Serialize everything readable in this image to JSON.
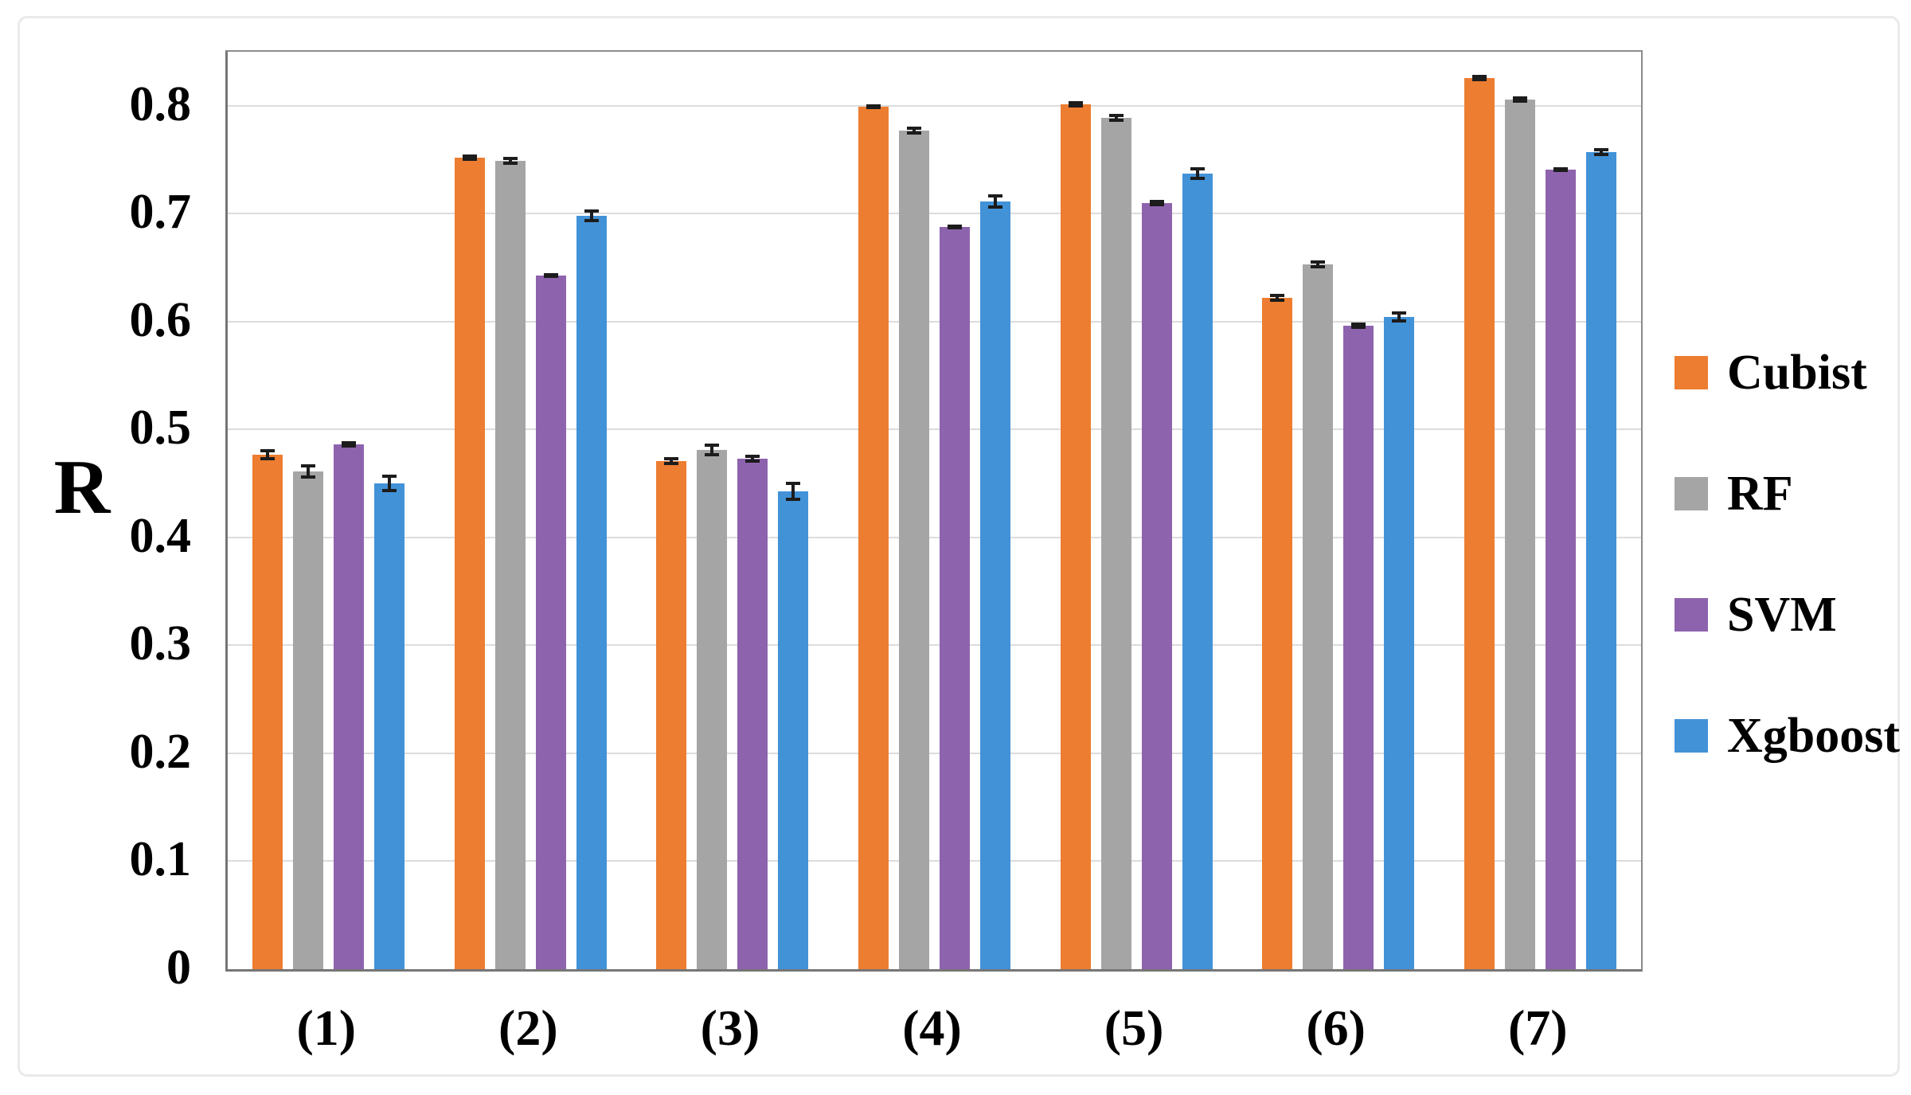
{
  "chart_data": {
    "type": "bar",
    "title": "",
    "ylabel": "R",
    "xlabel": "",
    "categories": [
      "(1)",
      "(2)",
      "(3)",
      "(4)",
      "(5)",
      "(6)",
      "(7)"
    ],
    "y_ticks": [
      "0",
      "0.1",
      "0.2",
      "0.3",
      "0.4",
      "0.5",
      "0.6",
      "0.7",
      "0.8"
    ],
    "ylim": [
      0,
      0.85
    ],
    "grid": true,
    "error_bars": true,
    "legend_position": "right",
    "series": [
      {
        "name": "Cubist",
        "color": "#ED7D31",
        "values": [
          0.477,
          0.752,
          0.471,
          0.799,
          0.801,
          0.622,
          0.826
        ],
        "errors": [
          0.005,
          0.003,
          0.004,
          0.002,
          0.003,
          0.004,
          0.003
        ]
      },
      {
        "name": "RF",
        "color": "#A5A5A5",
        "values": [
          0.461,
          0.749,
          0.481,
          0.777,
          0.789,
          0.653,
          0.806
        ],
        "errors": [
          0.007,
          0.004,
          0.006,
          0.004,
          0.004,
          0.004,
          0.003
        ]
      },
      {
        "name": "SVM",
        "color": "#8E63AE",
        "values": [
          0.486,
          0.643,
          0.473,
          0.688,
          0.71,
          0.596,
          0.741
        ],
        "errors": [
          0.003,
          0.002,
          0.004,
          0.002,
          0.003,
          0.003,
          0.002
        ]
      },
      {
        "name": "Xgboost",
        "color": "#4292D8",
        "values": [
          0.45,
          0.698,
          0.443,
          0.711,
          0.737,
          0.604,
          0.757
        ],
        "errors": [
          0.008,
          0.006,
          0.009,
          0.007,
          0.006,
          0.005,
          0.004
        ]
      }
    ],
    "colors": {
      "gridline": "#DCDCDC",
      "axis": "#767676",
      "error_bar": "#1C1C1C",
      "text": "#000000"
    }
  }
}
